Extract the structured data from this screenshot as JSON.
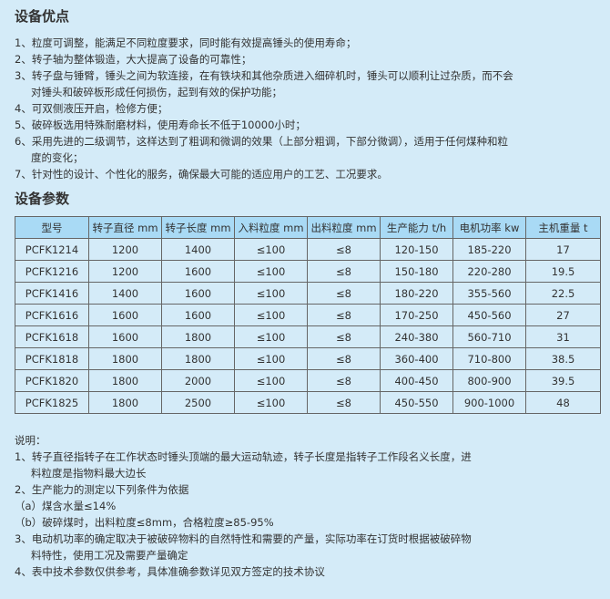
{
  "advantages": {
    "title": "设备优点",
    "items": [
      "1、粒度可调整，能满足不同粒度要求，同时能有效提高锤头的使用寿命；",
      "2、转子轴为整体锻造，大大提高了设备的可靠性；",
      "3、转子盘与锤臂，锤头之间为软连接，在有铁块和其他杂质进入细碎机时，锤头可以顺利让过杂质，而不会",
      "对锤头和破碎板形成任何损伤，起到有效的保护功能；",
      "4、可双侧液压开启，检修方便；",
      "5、破碎板选用特殊耐磨材料，使用寿命长不低于10000小时；",
      "6、采用先进的二级调节，这样达到了粗调和微调的效果（上部分粗调，下部分微调），适用于任何煤种和粒",
      "度的变化；",
      "7、针对性的设计、个性化的服务，确保最大可能的适应用户的工艺、工况要求。"
    ]
  },
  "params": {
    "title": "设备参数",
    "headers": [
      "型号",
      "转子直径 mm",
      "转子长度 mm",
      "入料粒度 mm",
      "出料粒度 mm",
      "生产能力 t/h",
      "电机功率 kw",
      "主机重量 t"
    ],
    "rows": [
      [
        "PCFK1214",
        "1200",
        "1400",
        "≤100",
        "≤8",
        "120-150",
        "185-220",
        "17"
      ],
      [
        "PCFK1216",
        "1200",
        "1600",
        "≤100",
        "≤8",
        "150-180",
        "220-280",
        "19.5"
      ],
      [
        "PCFK1416",
        "1400",
        "1600",
        "≤100",
        "≤8",
        "180-220",
        "355-560",
        "22.5"
      ],
      [
        "PCFK1616",
        "1600",
        "1600",
        "≤100",
        "≤8",
        "170-250",
        "450-560",
        "27"
      ],
      [
        "PCFK1618",
        "1600",
        "1800",
        "≤100",
        "≤8",
        "240-380",
        "560-710",
        "31"
      ],
      [
        "PCFK1818",
        "1800",
        "1800",
        "≤100",
        "≤8",
        "360-400",
        "710-800",
        "38.5"
      ],
      [
        "PCFK1820",
        "1800",
        "2000",
        "≤100",
        "≤8",
        "400-450",
        "800-900",
        "39.5"
      ],
      [
        "PCFK1825",
        "1800",
        "2500",
        "≤100",
        "≤8",
        "450-550",
        "900-1000",
        "48"
      ]
    ]
  },
  "notes": {
    "items": [
      "说明：",
      "1、转子直径指转子在工作状态时锤头顶端的最大运动轨迹，转子长度是指转子工作段名义长度，进",
      "料粒度是指物料最大边长",
      "2、生产能力的测定以下列条件为依据",
      "（a）煤含水量≤14%",
      "（b）破碎煤时，出料粒度≤8mm，合格粒度≥85-95%",
      "3、电动机功率的确定取决于被破碎物料的自然特性和需要的产量，实际功率在订货时根据被破碎物",
      "料特性，使用工况及需要产量确定",
      "4、表中技术参数仅供参考，具体准确参数详见双方签定的技术协议"
    ]
  }
}
